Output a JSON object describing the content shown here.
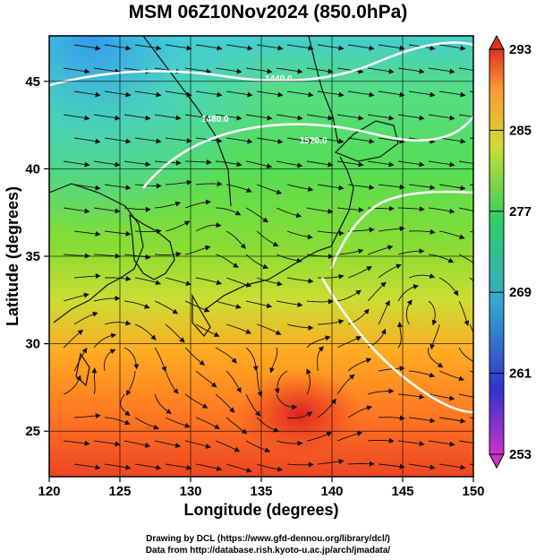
{
  "title": "MSM 06Z10Nov2024 (850.0hPa)",
  "axes": {
    "xlabel": "Longitude (degrees)",
    "ylabel": "Latitude  (degrees)",
    "xlim": [
      120,
      150
    ],
    "ylim": [
      22.4,
      47.6
    ],
    "xticks": [
      "120",
      "125",
      "130",
      "135",
      "140",
      "145",
      "150"
    ],
    "yticks": [
      "25",
      "30",
      "35",
      "40",
      "45"
    ]
  },
  "colorbar": {
    "range": [
      253,
      293
    ],
    "labels": [
      "293",
      "285",
      "277",
      "269",
      "261",
      "253"
    ],
    "colors": [
      "#cc33cc",
      "#3333cc",
      "#33aacc",
      "#33cc66",
      "#ccdd33",
      "#ff9933",
      "#dd3322"
    ]
  },
  "contours": {
    "labels": [
      "1440.0",
      "1480.0",
      "1520.0"
    ],
    "color": "#ffffff"
  },
  "credit": {
    "line1": "Drawing by DCL (https://www.gfd-dennou.org/library/dcl/)",
    "line2": "Data from http://database.rish.kyoto-u.ac.jp/arch/jmadata/"
  }
}
